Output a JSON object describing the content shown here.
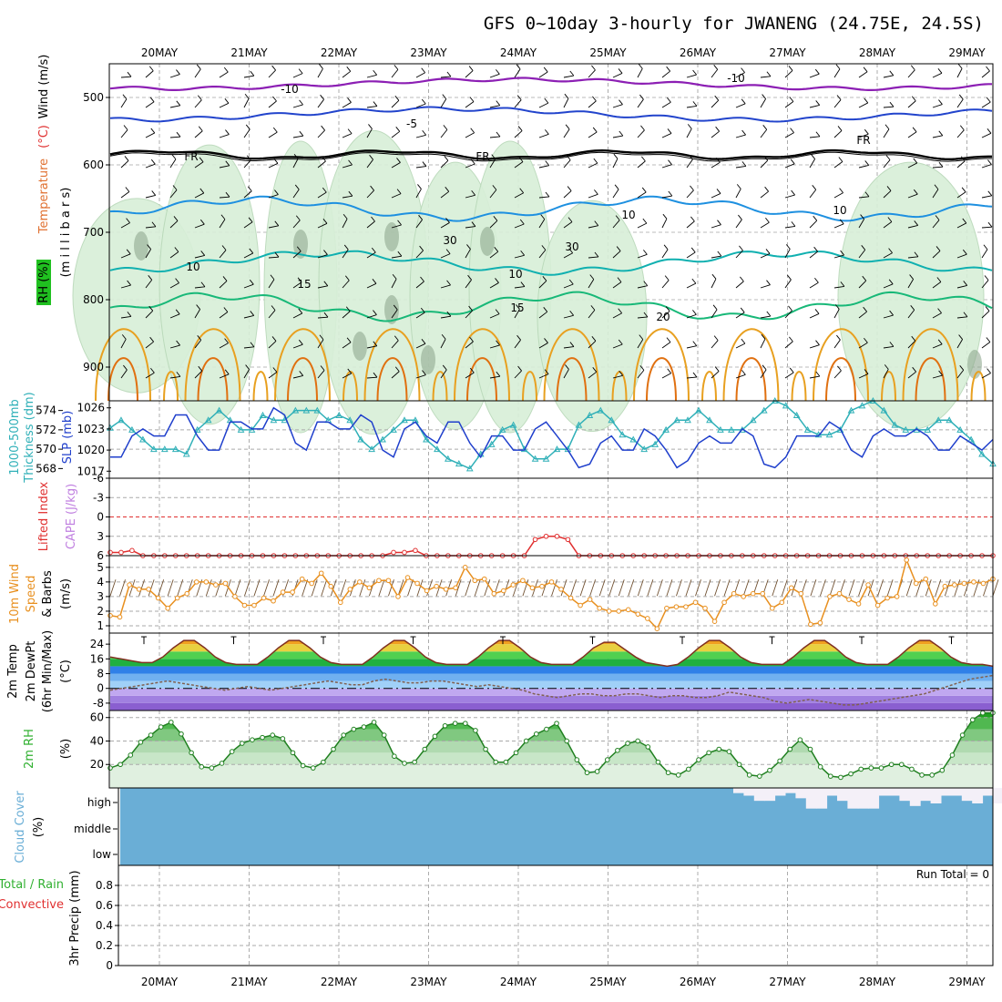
{
  "title": "GFS 0~10day 3-hourly for JWANENG (24.75E, 24.5S)",
  "dates": [
    "20MAY",
    "21MAY",
    "22MAY",
    "23MAY",
    "24MAY",
    "25MAY",
    "26MAY",
    "27MAY",
    "28MAY",
    "29MAY"
  ],
  "colors": {
    "temp_neg10": "#8c1fb4",
    "temp_neg5": "#2244cc",
    "temp_fr": "#000000",
    "temp_5": "#1e90e0",
    "temp_10": "#10b0b0",
    "temp_15": "#18b878",
    "temp_20": "#e8a020",
    "temp_25": "#e07010",
    "rh_fill": "#d8efd8",
    "thickness": "#30b0b8",
    "slp": "#1f3fcc",
    "lifted": "#e03030",
    "wind10m": "#e89020",
    "rh2m": "#40b040",
    "cloud": "#6aaed6"
  },
  "panels": [
    {
      "id": "upper-air",
      "ylabels": [
        {
          "text": "Temperature",
          "color": "#e07030"
        },
        {
          "text": "(°C)",
          "color": "#e03030"
        },
        {
          "text": "Wind (m/s)",
          "color": "#000000"
        }
      ],
      "ylabels2": [
        {
          "text": "(m i l l i b a r s)",
          "color": "#000000"
        }
      ],
      "rh_label": "RH (%)",
      "yticks": [
        "500",
        "600",
        "700",
        "800",
        "900"
      ],
      "contour_labels": [
        {
          "text": "-10",
          "color": "#8c1fb4"
        },
        {
          "text": "-10",
          "color": "#8c1fb4"
        },
        {
          "text": "-5",
          "color": "#2244cc"
        },
        {
          "text": "FR",
          "color": "#000000"
        },
        {
          "text": "FR",
          "color": "#000000"
        },
        {
          "text": "FR",
          "color": "#000000"
        },
        {
          "text": "10",
          "color": "#10b0b0"
        },
        {
          "text": "10",
          "color": "#10b0b0"
        },
        {
          "text": "15",
          "color": "#18b878"
        },
        {
          "text": "15",
          "color": "#18b878"
        },
        {
          "text": "20",
          "color": "#e8a020"
        },
        {
          "text": "30",
          "color": "#999999"
        },
        {
          "text": "30",
          "color": "#999999"
        },
        {
          "text": "10",
          "color": "#999999"
        },
        {
          "text": "10",
          "color": "#999999"
        }
      ]
    },
    {
      "id": "slp-thickness",
      "ylabels": [
        {
          "text": "1000-500mb",
          "color": "#30b0b8"
        },
        {
          "text": "Thickness (dm)",
          "color": "#30b0b8"
        },
        {
          "text": "SLP (mb)",
          "color": "#1f3fcc"
        }
      ],
      "yticks_left": [
        "574",
        "572",
        "570",
        "568"
      ],
      "yticks_right": [
        "1026",
        "1023",
        "1020",
        "1017"
      ]
    },
    {
      "id": "lifted-index",
      "ylabels": [
        {
          "text": "Lifted Index",
          "color": "#e03030"
        },
        {
          "text": "CAPE (J/kg)",
          "color": "#c080e0"
        }
      ],
      "yticks": [
        "-6",
        "-3",
        "0",
        "3",
        "6"
      ]
    },
    {
      "id": "wind10m",
      "ylabels": [
        {
          "text": "10m Wind",
          "color": "#e89020"
        },
        {
          "text": "Speed",
          "color": "#e89020"
        },
        {
          "text": "& Barbs",
          "color": "#000000"
        },
        {
          "text": "(m/s)",
          "color": "#000000"
        }
      ],
      "yticks": [
        "5",
        "4",
        "3",
        "2",
        "1"
      ]
    },
    {
      "id": "temp2m",
      "ylabels": [
        {
          "text": "2m Temp",
          "color": "#000000"
        },
        {
          "text": "2m DewPt",
          "color": "#000000"
        },
        {
          "text": "(6hr Min/Max)",
          "color": "#000000"
        },
        {
          "text": "(°C)",
          "color": "#000000"
        }
      ],
      "yticks": [
        "24",
        "16",
        "8",
        "0",
        "-8"
      ]
    },
    {
      "id": "rh2m",
      "ylabels": [
        {
          "text": "2m RH",
          "color": "#30b030"
        },
        {
          "text": "(%)",
          "color": "#000000"
        }
      ],
      "yticks": [
        "60",
        "40",
        "20"
      ]
    },
    {
      "id": "cloud",
      "ylabels": [
        {
          "text": "Cloud Cover",
          "color": "#6aaed6"
        },
        {
          "text": "(%)",
          "color": "#000000"
        }
      ],
      "yticks": [
        "high",
        "middle",
        "low"
      ]
    },
    {
      "id": "precip",
      "ylabels": [
        {
          "text": "Total / Rain",
          "color": "#30b030"
        },
        {
          "text": "Convective",
          "color": "#e03030"
        },
        {
          "text": "3hr Precip (mm)",
          "color": "#000000"
        }
      ],
      "yticks": [
        "0.8",
        "0.6",
        "0.4",
        "0.2",
        "0"
      ],
      "run_total": "Run Total = 0"
    }
  ],
  "chart_data": [
    {
      "type": "line",
      "panel": "slp-thickness",
      "ylim_left": [
        567,
        575
      ],
      "ylim_right": [
        1016,
        1027
      ],
      "series": [
        {
          "values": [
            572.2,
            573.0,
            572.0,
            571.0,
            570.0,
            570.0,
            570.0,
            569.5,
            572.0,
            573.0,
            574.0,
            573.0,
            572.0,
            572.0,
            573.5,
            573.0,
            573.0,
            574.0,
            574.0,
            574.0,
            573.0,
            573.5,
            573.0,
            571.0,
            570.0,
            571.0,
            572.0,
            573.0,
            573.0,
            571.0,
            570.0,
            569.0,
            568.5,
            568.0,
            569.5,
            570.5,
            572.0,
            572.5,
            570.0,
            569.0,
            569.0,
            570.0,
            570.0,
            572.5,
            573.5,
            574.0,
            573.0,
            571.5,
            571.0,
            570.0,
            570.5,
            572.0,
            573.0,
            573.0,
            574.0,
            573.0,
            572.0,
            572.0,
            572.0,
            573.0,
            574.0,
            575.0,
            574.5,
            573.5,
            572.0,
            571.5,
            571.5,
            572.0,
            574.0,
            574.5,
            575.0,
            574.0,
            572.5,
            572.0,
            572.0,
            572.0,
            573.0,
            573.0,
            572.0,
            571.0,
            569.5,
            568.5
          ]
        },
        {
          "values": [
            1019.0,
            1019.0,
            1022.0,
            1023.0,
            1022.0,
            1022.0,
            1025.0,
            1025.0,
            1022.0,
            1020.0,
            1020.0,
            1024.0,
            1024.0,
            1023.0,
            1023.0,
            1026.0,
            1025.0,
            1021.0,
            1020.0,
            1024.0,
            1024.0,
            1023.0,
            1023.0,
            1025.0,
            1024.0,
            1020.0,
            1019.0,
            1023.0,
            1024.0,
            1022.0,
            1021.0,
            1024.0,
            1024.0,
            1021.0,
            1019.0,
            1022.0,
            1022.0,
            1020.0,
            1020.0,
            1023.0,
            1024.0,
            1022.0,
            1020.0,
            1017.5,
            1018.0,
            1021.0,
            1022.0,
            1020.0,
            1020.0,
            1023.0,
            1022.0,
            1020.0,
            1017.5,
            1018.5,
            1021.0,
            1022.0,
            1021.0,
            1021.0,
            1023.0,
            1022.0,
            1018.0,
            1017.5,
            1019.0,
            1022.0,
            1022.0,
            1022.0,
            1024.0,
            1023.0,
            1020.0,
            1019.0,
            1022.0,
            1023.0,
            1022.0,
            1022.0,
            1023.0,
            1022.0,
            1020.0,
            1020.0,
            1022.0,
            1021.0,
            1020.0,
            1021.5
          ]
        }
      ]
    },
    {
      "type": "line",
      "panel": "lifted-index",
      "ylim": [
        6,
        -6
      ],
      "series": [
        {
          "values": [
            5.5,
            5.5,
            5.2,
            6,
            6,
            6,
            6,
            6,
            6,
            6,
            6,
            6,
            6,
            6,
            6,
            6,
            6,
            6,
            6,
            6,
            6,
            6,
            6,
            6,
            6,
            6,
            5.5,
            5.5,
            5.2,
            6,
            6,
            6,
            6,
            6,
            6,
            6,
            6,
            6,
            6,
            3.5,
            3.0,
            3.0,
            3.5,
            6,
            6,
            6,
            6,
            6,
            6,
            6,
            6,
            6,
            6,
            6,
            6,
            6,
            6,
            6,
            6,
            6,
            6,
            6,
            6,
            6,
            6,
            6,
            6,
            6,
            6,
            6,
            6,
            6,
            6,
            6,
            6,
            6,
            6,
            6,
            6,
            6,
            6,
            6
          ]
        }
      ]
    },
    {
      "type": "line",
      "panel": "wind10m",
      "ylim": [
        0.5,
        5.8
      ],
      "series": [
        {
          "values": [
            1.7,
            1.6,
            3.8,
            3.5,
            3.5,
            2.9,
            2.2,
            2.9,
            3.2,
            4.0,
            4.0,
            3.8,
            3.9,
            3.0,
            2.4,
            2.4,
            2.9,
            2.7,
            3.3,
            3.3,
            4.2,
            3.9,
            4.6,
            3.7,
            2.6,
            3.5,
            4.0,
            3.6,
            4.1,
            4.1,
            3.0,
            4.3,
            3.9,
            3.4,
            3.7,
            3.5,
            3.6,
            5.0,
            4.1,
            4.2,
            3.2,
            3.4,
            3.8,
            4.1,
            3.6,
            3.7,
            4.0,
            3.5,
            2.9,
            2.4,
            2.8,
            2.2,
            2.0,
            2.0,
            2.1,
            1.8,
            1.5,
            0.8,
            2.2,
            2.3,
            2.3,
            2.6,
            2.2,
            1.3,
            2.6,
            3.2,
            3.0,
            3.2,
            3.2,
            2.2,
            2.6,
            3.6,
            3.2,
            1.1,
            1.2,
            3.0,
            3.2,
            2.8,
            2.5,
            3.8,
            2.4,
            2.9,
            3.0,
            5.5,
            3.9,
            4.2,
            2.5,
            3.7,
            3.8,
            3.9,
            4.0,
            3.9,
            4.2
          ]
        }
      ]
    },
    {
      "type": "area",
      "panel": "temp2m",
      "ylim": [
        -12,
        30
      ],
      "series": [
        {
          "values": [
            17,
            16,
            15,
            14,
            14,
            17,
            22,
            26,
            26,
            22,
            17,
            14,
            13,
            13,
            13,
            17,
            22,
            26,
            26,
            22,
            17,
            14,
            13,
            13,
            13,
            17,
            22,
            26,
            26,
            22,
            17,
            14,
            13,
            13,
            13,
            17,
            22,
            26,
            26,
            22,
            17,
            14,
            13,
            13,
            13,
            17,
            22,
            25,
            25,
            21,
            17,
            14,
            13,
            12,
            13,
            17,
            22,
            26,
            26,
            22,
            17,
            14,
            13,
            13,
            13,
            17,
            22,
            26,
            26,
            22,
            17,
            14,
            13,
            13,
            13,
            17,
            22,
            26,
            26,
            22,
            17,
            14,
            13,
            13,
            12
          ]
        },
        {
          "values": [
            -1,
            0,
            1,
            2,
            3,
            4,
            3,
            2,
            1,
            0,
            -1,
            0,
            1,
            0,
            -1,
            0,
            1,
            2,
            3,
            4,
            3,
            2,
            2,
            4,
            5,
            4,
            3,
            3,
            4,
            4,
            3,
            2,
            1,
            2,
            1,
            0,
            -1,
            -3,
            -4,
            -5,
            -4,
            -3,
            -3,
            -4,
            -4,
            -3,
            -3,
            -4,
            -5,
            -4,
            -4,
            -5,
            -5,
            -4,
            -2,
            -3,
            -4,
            -5,
            -7,
            -8,
            -7,
            -6,
            -7,
            -8,
            -9,
            -9,
            -8,
            -7,
            -6,
            -5,
            -4,
            -3,
            -1,
            1,
            3,
            5,
            6,
            7
          ]
        }
      ]
    },
    {
      "type": "area",
      "panel": "rh2m",
      "ylim": [
        0,
        66
      ],
      "series": [
        {
          "values": [
            17,
            20,
            28,
            39,
            45,
            52,
            56,
            46,
            30,
            18,
            17,
            21,
            31,
            38,
            41,
            43,
            45,
            42,
            30,
            19,
            17,
            22,
            33,
            45,
            50,
            52,
            56,
            45,
            27,
            21,
            22,
            33,
            44,
            53,
            55,
            55,
            49,
            33,
            22,
            22,
            30,
            40,
            46,
            50,
            55,
            40,
            24,
            13,
            14,
            24,
            32,
            38,
            40,
            35,
            22,
            13,
            11,
            16,
            24,
            30,
            33,
            31,
            20,
            11,
            10,
            15,
            23,
            33,
            41,
            33,
            18,
            10,
            9,
            12,
            16,
            17,
            17,
            20,
            20,
            16,
            11,
            11,
            15,
            28,
            45,
            58,
            64,
            64
          ]
        }
      ]
    },
    {
      "type": "table",
      "panel": "cloud",
      "rows": [
        "high",
        "middle",
        "low"
      ],
      "high_clear_fraction": [
        0,
        0,
        0,
        0,
        0,
        0,
        0,
        0,
        0,
        0,
        0,
        0,
        0,
        0,
        0,
        0,
        0,
        0,
        0,
        0,
        0,
        0,
        0,
        0,
        0,
        0,
        0,
        0,
        0,
        0,
        0,
        0,
        0,
        0,
        0,
        0,
        0,
        0,
        0,
        0,
        0,
        0,
        0,
        0,
        0,
        0,
        0,
        0,
        0,
        0,
        0,
        0,
        0,
        0,
        0,
        0,
        0,
        0,
        0,
        0,
        0.2,
        0.3,
        0.5,
        0.5,
        0.3,
        0.2,
        0.4,
        0.8,
        0.8,
        0.3,
        0.5,
        0.8,
        0.8,
        0.8,
        0.3,
        0.3,
        0.5,
        0.7,
        0.5,
        0.6,
        0.3,
        0.3,
        0.5,
        0.6,
        0.3,
        0.6
      ]
    },
    {
      "type": "bar",
      "panel": "precip",
      "ylim": [
        0,
        1.0
      ],
      "values": [
        0,
        0,
        0,
        0,
        0,
        0,
        0,
        0,
        0,
        0
      ]
    }
  ]
}
